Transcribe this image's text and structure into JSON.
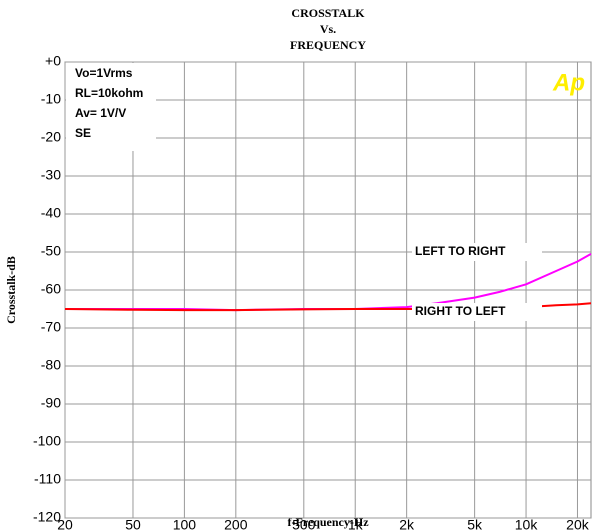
{
  "chart_data": {
    "type": "line",
    "title_lines": [
      "CROSSTALK",
      "Vs.",
      "FREQUENCY"
    ],
    "xlabel": "f-Frequency-Hz",
    "ylabel": "Crosstalk-dB",
    "xscale": "log",
    "xlim": [
      20,
      24000
    ],
    "xticks": [
      20,
      50,
      100,
      200,
      500,
      {
        "value": 1000,
        "label": "1k"
      },
      {
        "value": 2000,
        "label": "2k"
      },
      {
        "value": 5000,
        "label": "5k"
      },
      {
        "value": 10000,
        "label": "10k"
      },
      {
        "value": 20000,
        "label": "20k"
      }
    ],
    "ylim": [
      -120,
      0
    ],
    "yticks": [
      {
        "value": 0,
        "label": "+0"
      },
      -10,
      -20,
      -30,
      -40,
      -50,
      -60,
      -70,
      -80,
      -90,
      -100,
      -110,
      -120
    ],
    "grid": true,
    "x": [
      20,
      50,
      100,
      200,
      500,
      1000,
      2000,
      3000,
      5000,
      7000,
      10000,
      15000,
      20000,
      24000
    ],
    "series": [
      {
        "name": "LEFT TO RIGHT",
        "color": "#ff00ff",
        "values": [
          -65,
          -65,
          -65,
          -65.3,
          -65,
          -65,
          -64.5,
          -63.5,
          -62,
          -60.5,
          -58.5,
          -55,
          -52.5,
          -50.5
        ]
      },
      {
        "name": "RIGHT TO LEFT",
        "color": "#ff0000",
        "values": [
          -65,
          -65.2,
          -65.3,
          -65.3,
          -65.1,
          -65,
          -65,
          -65,
          -65,
          -64.8,
          -64.5,
          -64,
          -63.8,
          -63.5
        ]
      }
    ],
    "annotations": [
      "Vo=1Vrms",
      "RL=10kohm",
      "Av= 1V/V",
      "SE"
    ],
    "logo": "Ap"
  }
}
